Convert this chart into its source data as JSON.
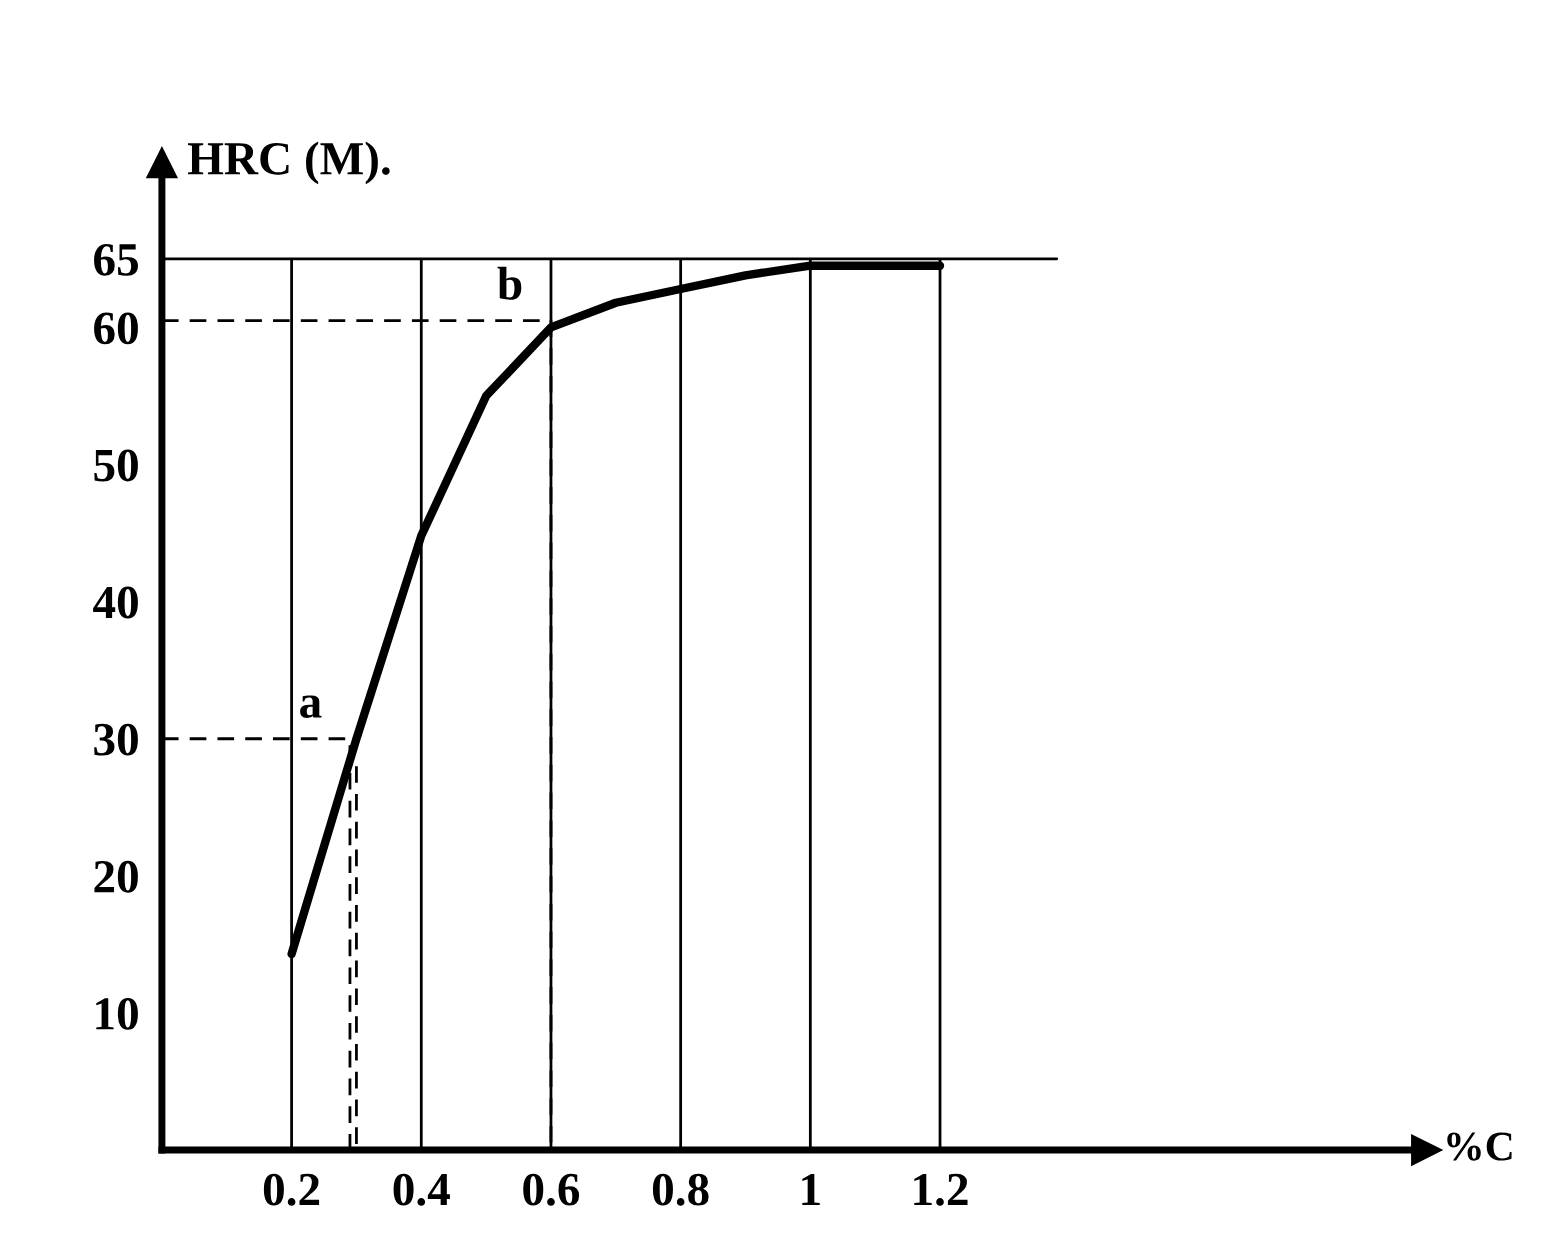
{
  "chart_data": {
    "type": "line",
    "xlabel": "%C",
    "ylabel": "HRC (M).",
    "series": [
      {
        "color": "#000000",
        "line_style": "solid",
        "x": [
          0.2,
          0.3,
          0.4,
          0.5,
          0.6,
          0.7,
          0.8,
          0.9,
          1.0,
          1.2
        ],
        "values": [
          14.3,
          30,
          44.8,
          55,
          60,
          61.8,
          62.8,
          63.8,
          64.5,
          64.5
        ]
      },
      {
        "color": "#000000",
        "line_style": "solid",
        "x": [
          0,
          1.38
        ],
        "values": [
          65,
          65
        ]
      },
      {
        "color": "#000000",
        "line_style": "dashed",
        "x": [
          0,
          0.29,
          0.29
        ],
        "values": [
          30,
          30,
          0
        ]
      },
      {
        "color": "#000000",
        "line_style": "dashed",
        "x": [
          0.3,
          0.3
        ],
        "values": [
          28,
          0
        ]
      },
      {
        "color": "#000000",
        "line_style": "dashed",
        "x": [
          0,
          0.6,
          0.6
        ],
        "values": [
          60.5,
          60.5,
          0
        ]
      }
    ],
    "annotations": [
      {
        "text": "a",
        "x": 0.29,
        "y": 30
      },
      {
        "text": "b",
        "x": 0.6,
        "y": 60.5
      }
    ],
    "xlim": [
      0,
      1.95
    ],
    "ylim": [
      0,
      72
    ],
    "xticks": [
      0.2,
      0.4,
      0.6,
      0.8,
      {
        "value": 1,
        "label": "1"
      },
      1.2
    ],
    "yticks": [
      10,
      20,
      30,
      40,
      50,
      60,
      65
    ],
    "grid": "x",
    "legend": false,
    "marker": "none"
  }
}
